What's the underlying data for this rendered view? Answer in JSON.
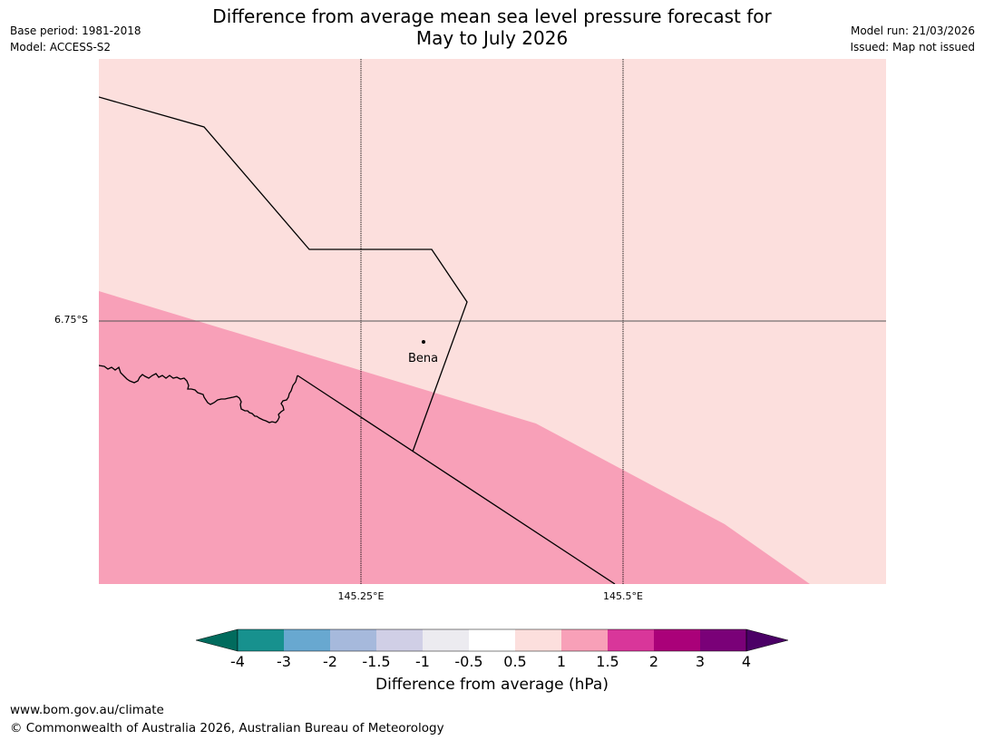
{
  "title": {
    "line1": "Difference from average mean sea level pressure forecast for",
    "line2": "May to July 2026"
  },
  "meta_left": {
    "base_period": "Base period: 1981-2018",
    "model": "Model: ACCESS-S2"
  },
  "meta_right": {
    "model_run": "Model run: 21/03/2026",
    "issued": "Issued: Map not issued"
  },
  "map": {
    "latitude_labels": [
      "6.75°S"
    ],
    "longitude_labels": [
      "145.25°E",
      "145.5°E"
    ],
    "places": [
      {
        "name": "Bena"
      }
    ],
    "region_fill_colors": {
      "0.5 to 1": "#fcdfdd",
      "1 to 1.5": "#f8a0b8"
    }
  },
  "colorbar": {
    "title": "Difference from average (hPa)",
    "tick_labels": [
      "-4",
      "-3",
      "-2",
      "-1.5",
      "-1",
      "-0.5",
      "0.5",
      "1",
      "1.5",
      "2",
      "3",
      "4"
    ],
    "colors": [
      "#17918e",
      "#68a8d0",
      "#a6b9dc",
      "#d0cfe6",
      "#ecebf0",
      "#ffffff",
      "#fcdfdd",
      "#f8a0b8",
      "#d9369a",
      "#aa0179",
      "#7a0178"
    ],
    "extend_low_color": "#016b5d",
    "extend_high_color": "#4b0066"
  },
  "footer": {
    "url": "www.bom.gov.au/climate",
    "copyright": "© Commonwealth of Australia 2026, Australian Bureau of Meteorology"
  }
}
